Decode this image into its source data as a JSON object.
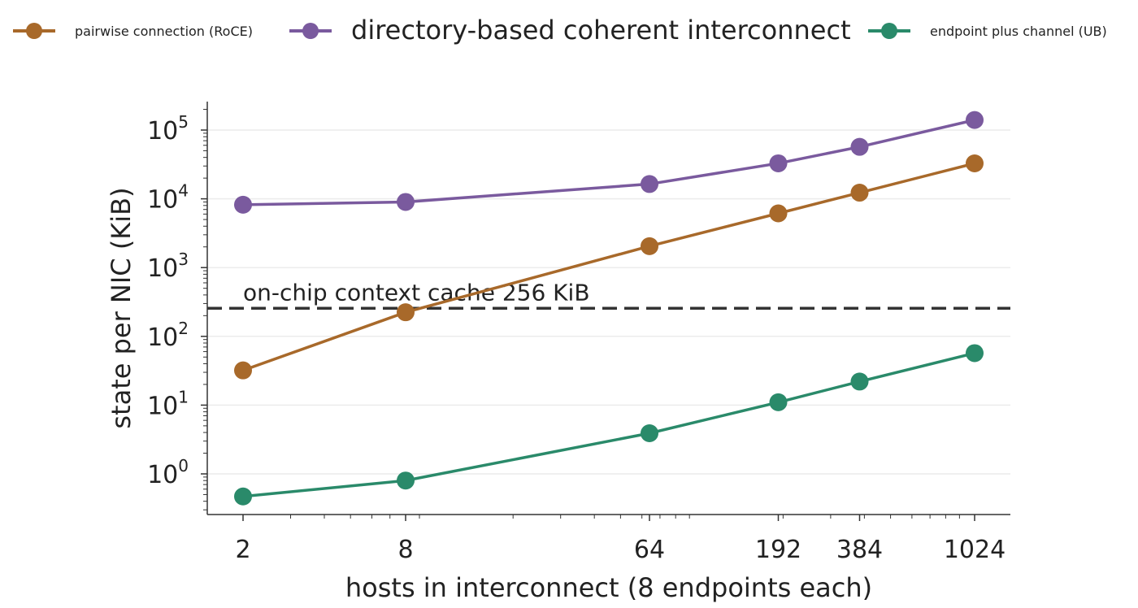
{
  "chart_data": {
    "type": "line",
    "title": "",
    "xlabel": "hosts in interconnect (8 endpoints each)",
    "ylabel": "state per NIC (KiB)",
    "x_scale": "log",
    "y_scale": "log",
    "x": [
      2,
      8,
      64,
      192,
      384,
      1024
    ],
    "x_tick_labels": [
      "2",
      "8",
      "64",
      "192",
      "384",
      "1024"
    ],
    "y_ticks": [
      {
        "base": "10",
        "exp": "0",
        "value": 1
      },
      {
        "base": "10",
        "exp": "1",
        "value": 10
      },
      {
        "base": "10",
        "exp": "2",
        "value": 100
      },
      {
        "base": "10",
        "exp": "3",
        "value": 1000
      },
      {
        "base": "10",
        "exp": "4",
        "value": 10000
      },
      {
        "base": "10",
        "exp": "5",
        "value": 100000
      }
    ],
    "ylim": [
      0.3,
      250000
    ],
    "grid": "horizontal",
    "legend_position": "top",
    "series": [
      {
        "name": "pairwise connection (RoCE)",
        "color": "#a8692a",
        "values": [
          32,
          224,
          2048,
          6144,
          12288,
          32768
        ]
      },
      {
        "name": "directory-based coherent interconnect",
        "color": "#7a5a9e",
        "values": [
          8200,
          9000,
          16400,
          32800,
          57000,
          140000
        ]
      },
      {
        "name": "endpoint plus channel (UB)",
        "color": "#2a8a6a",
        "values": [
          0.47,
          0.8,
          3.9,
          11,
          22,
          57
        ]
      }
    ],
    "reference_line": {
      "value": 256,
      "label": "on-chip context cache 256 KiB",
      "color": "#333333",
      "style": "dashed"
    }
  }
}
